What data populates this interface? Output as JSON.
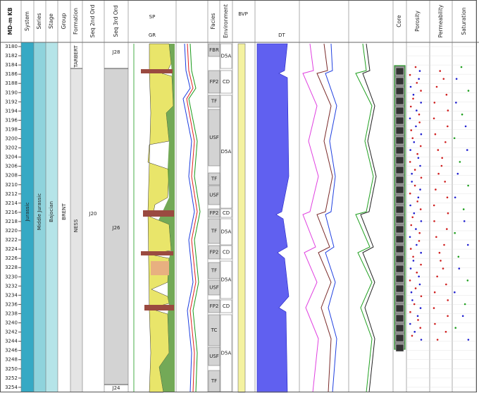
{
  "header": {
    "depth": "MD-m KB",
    "columns": [
      "System",
      "Series",
      "Stage",
      "Group",
      "Formation",
      "Seq 2nd Ord",
      "Seq 3rd Ord",
      "Facies",
      "Environment",
      "Core",
      "Porosity",
      "Permeability",
      "Saturation"
    ]
  },
  "depths": [
    3180,
    3182,
    3184,
    3186,
    3188,
    3190,
    3192,
    3194,
    3196,
    3198,
    3200,
    3202,
    3204,
    3206,
    3208,
    3210,
    3212,
    3214,
    3216,
    3218,
    3220,
    3222,
    3224,
    3226,
    3228,
    3230,
    3232,
    3234,
    3236,
    3238,
    3240,
    3242,
    3244,
    3246,
    3248,
    3250,
    3252,
    3254
  ],
  "system": "Jurassic",
  "series": "Middle Jurassic",
  "stage": "Bajocian",
  "group": "BRENT",
  "formations": [
    "TARBERT",
    "NESS"
  ],
  "seq_2nd": "J20",
  "seq_3rd": [
    "J28",
    "J26",
    "J24"
  ],
  "facies": [
    "FBR",
    "FP2",
    "TF",
    "USF",
    "TF",
    "USF",
    "FP2",
    "TF",
    "FP2",
    "TF",
    "USF",
    "FP2",
    "TC",
    "USF",
    "TF"
  ],
  "environment": [
    "D5A",
    "CD",
    "D5A",
    "CD",
    "D5A",
    "CD",
    "D5A",
    "CD",
    "D5A"
  ],
  "curve_labels": [
    "GR",
    "SP",
    "DT",
    "BVP"
  ]
}
